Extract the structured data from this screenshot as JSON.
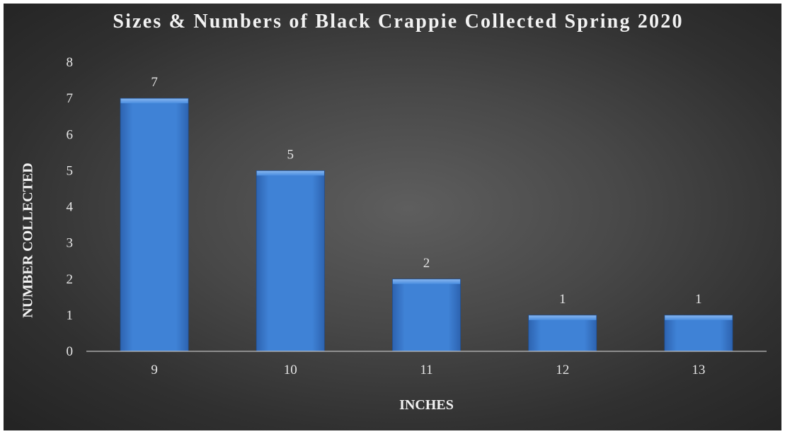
{
  "chart_data": {
    "type": "bar",
    "title": "Sizes & Numbers of Black Crappie Collected Spring 2020",
    "xlabel": "INCHES",
    "ylabel": "NUMBER COLLECTED",
    "categories": [
      "9",
      "10",
      "11",
      "12",
      "13"
    ],
    "values": [
      7,
      5,
      2,
      1,
      1
    ],
    "data_labels": [
      "7",
      "5",
      "2",
      "1",
      "1"
    ],
    "ylim": [
      0,
      8
    ],
    "yticks": [
      0,
      1,
      2,
      3,
      4,
      5,
      6,
      7,
      8
    ],
    "grid": false,
    "legend": "none",
    "bar_color": "#3f82d6",
    "background": "#3a3a3a"
  }
}
